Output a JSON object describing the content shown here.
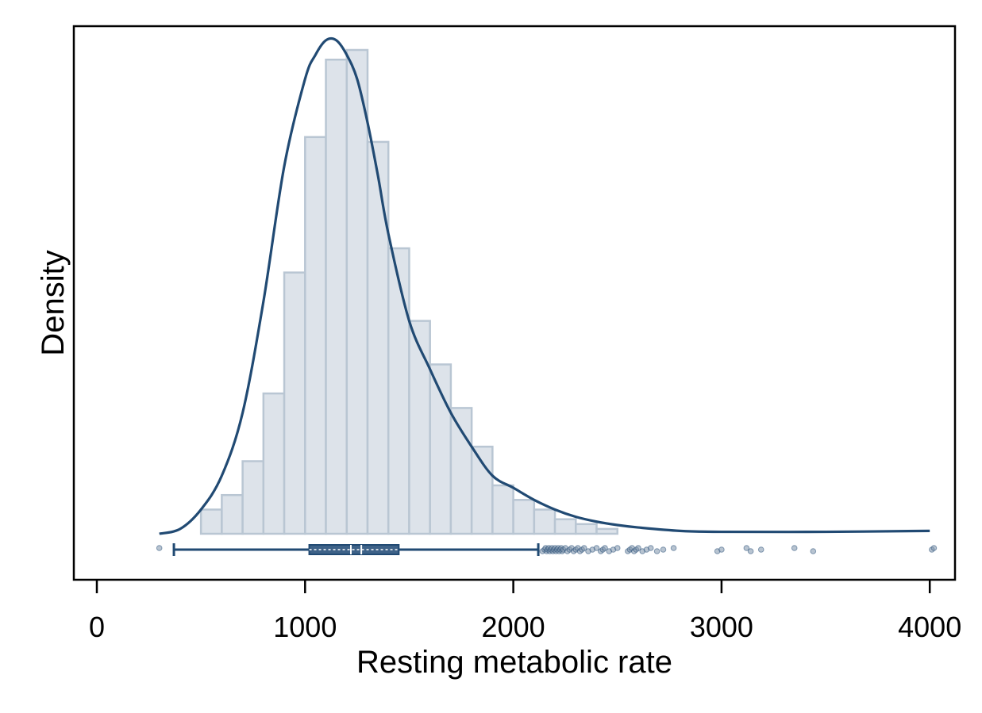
{
  "chart_data": {
    "type": "histogram",
    "xlabel": "Resting metabolic rate",
    "ylabel": "Density",
    "xlim": [
      -100,
      4100
    ],
    "x_ticks": [
      0,
      1000,
      2000,
      3000,
      4000
    ],
    "y_ticks_shown": false,
    "grid": false,
    "colors": {
      "bar_fill": "#dde3ea",
      "bar_edge": "#b9c6d3",
      "line": "#214a73",
      "box_fill": "#3e6288",
      "outlier": "#7d93ab"
    },
    "bins": {
      "start": 500,
      "width": 100,
      "relative_heights": [
        0.05,
        0.08,
        0.15,
        0.29,
        0.54,
        0.82,
        0.98,
        1.0,
        0.81,
        0.59,
        0.44,
        0.35,
        0.26,
        0.18,
        0.1,
        0.07,
        0.05,
        0.03,
        0.02,
        0.01
      ]
    },
    "kde": {
      "x": [
        300,
        400,
        500,
        600,
        700,
        800,
        900,
        1000,
        1050,
        1100,
        1150,
        1200,
        1250,
        1300,
        1350,
        1400,
        1500,
        1600,
        1700,
        1800,
        1900,
        2000,
        2100,
        2200,
        2300,
        2400,
        2500,
        2600,
        2800,
        3000,
        3500,
        4000
      ],
      "y": [
        0.0,
        0.01,
        0.05,
        0.12,
        0.25,
        0.48,
        0.76,
        0.94,
        0.99,
        1.02,
        1.02,
        0.99,
        0.94,
        0.85,
        0.74,
        0.62,
        0.44,
        0.34,
        0.25,
        0.18,
        0.12,
        0.095,
        0.07,
        0.05,
        0.035,
        0.025,
        0.018,
        0.013,
        0.006,
        0.004,
        0.004,
        0.006
      ]
    },
    "boxplot": {
      "whisker_low": 370,
      "q1": 1020,
      "median": 1220,
      "mean": 1270,
      "q3": 1450,
      "whisker_high": 2120,
      "outliers": [
        300,
        2140,
        2150,
        2155,
        2160,
        2165,
        2170,
        2175,
        2180,
        2185,
        2190,
        2195,
        2200,
        2205,
        2210,
        2215,
        2220,
        2225,
        2230,
        2235,
        2240,
        2250,
        2260,
        2270,
        2280,
        2290,
        2300,
        2310,
        2320,
        2330,
        2340,
        2360,
        2380,
        2400,
        2420,
        2430,
        2440,
        2460,
        2480,
        2500,
        2550,
        2560,
        2570,
        2580,
        2590,
        2600,
        2620,
        2640,
        2660,
        2690,
        2720,
        2770,
        2980,
        3000,
        3120,
        3140,
        3190,
        3350,
        3440,
        4010,
        4020
      ]
    }
  }
}
